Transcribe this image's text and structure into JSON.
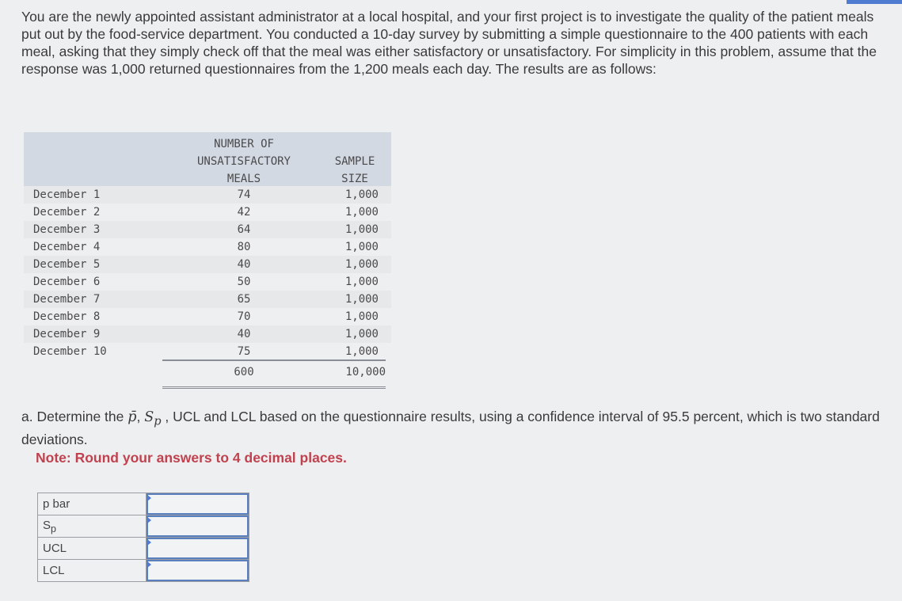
{
  "intro": "You are the newly appointed assistant administrator at a local hospital, and your first project is to investigate the quality of the patient meals put out by the food-service department. You conducted a 10-day survey by submitting a simple questionnaire to the 400 patients with each meal, asking that they simply check off that the meal was either satisfactory or unsatisfactory. For simplicity in this problem, assume that the response was 1,000 returned questionnaires from the 1,200 meals each day. The results are as follows:",
  "data_table": {
    "headers": [
      "",
      "NUMBER OF UNSATISFACTORY MEALS",
      "SAMPLE SIZE"
    ],
    "rows": [
      [
        "December 1",
        "74",
        "1,000"
      ],
      [
        "December 2",
        "42",
        "1,000"
      ],
      [
        "December 3",
        "64",
        "1,000"
      ],
      [
        "December 4",
        "80",
        "1,000"
      ],
      [
        "December 5",
        "40",
        "1,000"
      ],
      [
        "December 6",
        "50",
        "1,000"
      ],
      [
        "December 7",
        "65",
        "1,000"
      ],
      [
        "December 8",
        "70",
        "1,000"
      ],
      [
        "December 9",
        "40",
        "1,000"
      ],
      [
        "December 10",
        "75",
        "1,000"
      ]
    ],
    "totals": [
      "600",
      "10,000"
    ]
  },
  "question": {
    "prefix": "a. Determine the",
    "pbar": "p̄",
    "sp": "S",
    "sp_sub": "p",
    "suffix": ", UCL and LCL based on the questionnaire results, using a confidence interval of 95.5 percent, which is two standard deviations.",
    "note": "Note: Round your answers to 4 decimal places."
  },
  "answers": [
    {
      "label": "p bar",
      "value": ""
    },
    {
      "label": "S",
      "sub": "p",
      "value": ""
    },
    {
      "label": "UCL",
      "value": ""
    },
    {
      "label": "LCL",
      "value": ""
    }
  ],
  "colors": {
    "note": "#c0424f",
    "input_border": "#5a7fbf",
    "header_bg": "#d3d9e2"
  }
}
